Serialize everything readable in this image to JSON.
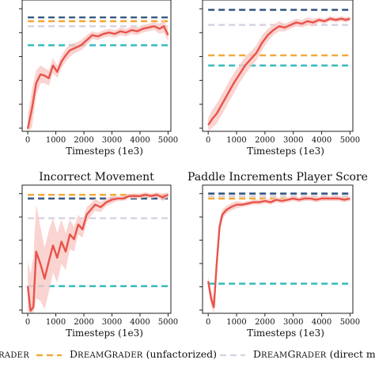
{
  "colors": {
    "background": "#ffffff",
    "learned": "#e8534a",
    "learned_band": "#f9c9c6",
    "navy_dashed": "#3b5b80",
    "orange_dashed": "#f2a93b",
    "lavender_dashed": "#d9d3e3",
    "teal_dashed": "#3ebdbd"
  },
  "legend": {
    "item1": {
      "pre": "",
      "sc": "RADER",
      "post": ""
    },
    "item2": {
      "pre": "D",
      "sc": "REAM",
      "mid": "G",
      "sc2": "RADER",
      "post": " (unfactorized)"
    },
    "item3": {
      "pre": "D",
      "sc": "REAM",
      "mid": "G",
      "sc2": "RADER",
      "post": " (direct m"
    }
  },
  "chart_data": [
    {
      "type": "line",
      "title": "",
      "xlabel": "Timesteps (1e3)",
      "xticks": [
        "0",
        "1000",
        "2000",
        "3000",
        "4000",
        "5000"
      ],
      "xlim": [
        -200,
        5100
      ],
      "ylim": [
        0,
        1
      ],
      "series": [
        {
          "x": [
            0,
            150,
            300,
            450,
            600,
            750,
            900,
            1050,
            1200,
            1350,
            1500,
            1700,
            1900,
            2100,
            2300,
            2500,
            2700,
            2900,
            3100,
            3300,
            3500,
            3700,
            3900,
            4100,
            4300,
            4500,
            4700,
            4850,
            5000
          ],
          "y": [
            0.02,
            0.18,
            0.38,
            0.45,
            0.44,
            0.42,
            0.52,
            0.47,
            0.55,
            0.6,
            0.64,
            0.66,
            0.68,
            0.72,
            0.76,
            0.75,
            0.77,
            0.78,
            0.77,
            0.79,
            0.78,
            0.8,
            0.79,
            0.81,
            0.82,
            0.83,
            0.81,
            0.83,
            0.76
          ],
          "band": [
            0.1,
            0.15,
            0.1,
            0.07,
            0.06,
            0.06,
            0.06,
            0.05,
            0.05,
            0.05,
            0.05,
            0.04,
            0.04,
            0.04,
            0.03,
            0.03,
            0.03,
            0.03,
            0.03,
            0.03,
            0.03,
            0.03,
            0.03,
            0.03,
            0.03,
            0.03,
            0.04,
            0.05,
            0.05
          ]
        }
      ],
      "baselines": [
        {
          "color": "navy",
          "y": 0.9
        },
        {
          "color": "orange",
          "y": 0.87
        },
        {
          "color": "lavender",
          "y": 0.83
        },
        {
          "color": "teal",
          "y": 0.68
        }
      ]
    },
    {
      "type": "line",
      "title": "",
      "xlabel": "Timesteps (1e3)",
      "xticks": [
        "0",
        "1000",
        "2000",
        "3000",
        "4000",
        "5000"
      ],
      "xlim": [
        -200,
        5100
      ],
      "ylim": [
        0,
        1
      ],
      "series": [
        {
          "x": [
            0,
            150,
            300,
            500,
            700,
            900,
            1100,
            1300,
            1500,
            1700,
            1900,
            2100,
            2300,
            2500,
            2700,
            2900,
            3100,
            3300,
            3500,
            3700,
            3900,
            4100,
            4300,
            4500,
            4700,
            4850,
            5000
          ],
          "y": [
            0.05,
            0.1,
            0.14,
            0.22,
            0.3,
            0.38,
            0.45,
            0.52,
            0.57,
            0.62,
            0.7,
            0.76,
            0.8,
            0.83,
            0.82,
            0.84,
            0.86,
            0.85,
            0.87,
            0.86,
            0.88,
            0.87,
            0.89,
            0.88,
            0.89,
            0.88,
            0.89
          ],
          "band": [
            0.06,
            0.07,
            0.08,
            0.08,
            0.08,
            0.08,
            0.07,
            0.07,
            0.06,
            0.06,
            0.06,
            0.05,
            0.04,
            0.04,
            0.03,
            0.03,
            0.03,
            0.03,
            0.03,
            0.03,
            0.02,
            0.02,
            0.02,
            0.02,
            0.02,
            0.02,
            0.02
          ]
        }
      ],
      "baselines": [
        {
          "color": "navy",
          "y": 0.96
        },
        {
          "color": "lavender",
          "y": 0.84
        },
        {
          "color": "orange",
          "y": 0.6
        },
        {
          "color": "teal",
          "y": 0.52
        }
      ]
    },
    {
      "type": "line",
      "title": "Incorrect Movement",
      "xlabel": "Timesteps (1e3)",
      "xticks": [
        "0",
        "1000",
        "2000",
        "3000",
        "4000",
        "5000"
      ],
      "xlim": [
        -200,
        5100
      ],
      "ylim": [
        0,
        1
      ],
      "series": [
        {
          "x": [
            0,
            100,
            200,
            300,
            450,
            600,
            750,
            900,
            1050,
            1200,
            1350,
            1500,
            1650,
            1800,
            1950,
            2100,
            2250,
            2400,
            2600,
            2800,
            3000,
            3200,
            3400,
            3600,
            3800,
            4000,
            4200,
            4400,
            4600,
            4800,
            5000
          ],
          "y": [
            0.22,
            0.02,
            0.05,
            0.5,
            0.4,
            0.28,
            0.42,
            0.55,
            0.45,
            0.58,
            0.5,
            0.64,
            0.6,
            0.72,
            0.68,
            0.8,
            0.84,
            0.88,
            0.86,
            0.9,
            0.92,
            0.93,
            0.93,
            0.95,
            0.95,
            0.95,
            0.96,
            0.95,
            0.96,
            0.94,
            0.96
          ],
          "band": [
            0.2,
            0.3,
            0.4,
            0.38,
            0.3,
            0.25,
            0.25,
            0.22,
            0.2,
            0.18,
            0.15,
            0.12,
            0.1,
            0.08,
            0.07,
            0.06,
            0.05,
            0.05,
            0.04,
            0.03,
            0.03,
            0.02,
            0.02,
            0.02,
            0.02,
            0.02,
            0.02,
            0.02,
            0.02,
            0.03,
            0.02
          ]
        }
      ],
      "baselines": [
        {
          "color": "navy",
          "y": 0.93
        },
        {
          "color": "orange",
          "y": 0.96
        },
        {
          "color": "lavender",
          "y": 0.77
        },
        {
          "color": "teal",
          "y": 0.22
        }
      ]
    },
    {
      "type": "line",
      "title": "Paddle Increments Player Score",
      "xlabel": "Timesteps (1e3)",
      "xticks": [
        "0",
        "1000",
        "2000",
        "3000",
        "4000",
        "5000"
      ],
      "xlim": [
        -200,
        5100
      ],
      "ylim": [
        0,
        1
      ],
      "series": [
        {
          "x": [
            0,
            100,
            200,
            300,
            400,
            500,
            650,
            800,
            1000,
            1200,
            1400,
            1600,
            1800,
            2000,
            2200,
            2400,
            2600,
            2800,
            3000,
            3200,
            3400,
            3600,
            3800,
            4000,
            4200,
            4400,
            4600,
            4800,
            5000
          ],
          "y": [
            0.26,
            0.12,
            0.05,
            0.4,
            0.7,
            0.8,
            0.84,
            0.86,
            0.88,
            0.88,
            0.89,
            0.9,
            0.9,
            0.91,
            0.9,
            0.92,
            0.91,
            0.92,
            0.93,
            0.92,
            0.93,
            0.93,
            0.92,
            0.93,
            0.93,
            0.93,
            0.93,
            0.92,
            0.93
          ],
          "band": [
            0.04,
            0.06,
            0.08,
            0.08,
            0.06,
            0.04,
            0.03,
            0.03,
            0.03,
            0.02,
            0.02,
            0.02,
            0.02,
            0.02,
            0.02,
            0.02,
            0.02,
            0.02,
            0.02,
            0.02,
            0.02,
            0.02,
            0.02,
            0.02,
            0.02,
            0.02,
            0.02,
            0.02,
            0.02
          ]
        }
      ],
      "baselines": [
        {
          "color": "navy",
          "y": 0.97
        },
        {
          "color": "orange",
          "y": 0.93
        },
        {
          "color": "lavender",
          "y": 0.95
        },
        {
          "color": "teal",
          "y": 0.24
        }
      ]
    }
  ]
}
